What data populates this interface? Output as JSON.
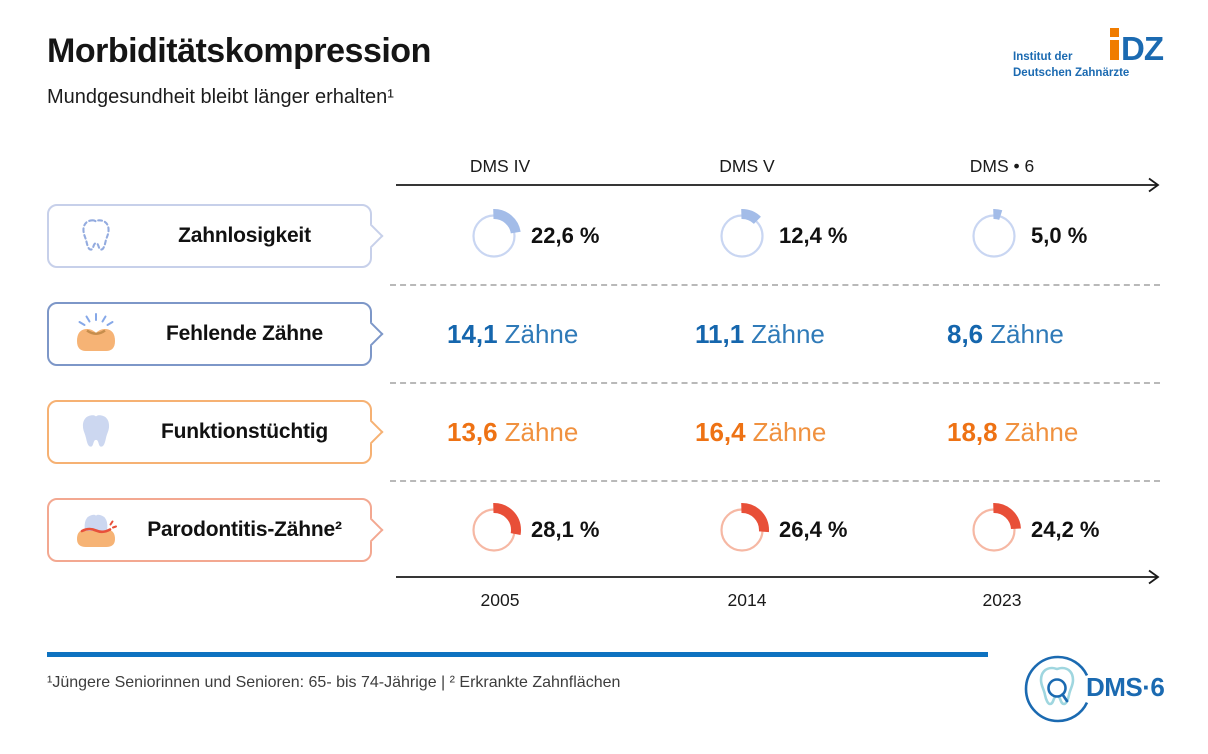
{
  "header": {
    "title": "Morbiditätskompression",
    "subtitle": "Mundgesundheit bleibt länger erhalten¹",
    "logo": {
      "mark": "DZ",
      "line1": "Institut der",
      "line2": "Deutschen Zahnärzte"
    }
  },
  "timeline": {
    "top_labels": [
      "DMS IV",
      "DMS V",
      "DMS • 6"
    ],
    "bottom_labels": [
      "2005",
      "2014",
      "2023"
    ]
  },
  "chart_data": {
    "type": "table",
    "title": "Morbiditätskompression",
    "subtitle": "Mundgesundheit bleibt länger erhalten¹",
    "columns": [
      "DMS IV",
      "DMS V",
      "DMS • 6"
    ],
    "years": [
      "2005",
      "2014",
      "2023"
    ],
    "series": [
      {
        "name": "Zahnlosigkeit",
        "display": "donut",
        "unit": "%",
        "values": [
          22.6,
          12.4,
          5.0
        ],
        "labels": [
          "22,6 %",
          "12,4 %",
          "5,0 %"
        ]
      },
      {
        "name": "Fehlende Zähne",
        "display": "number",
        "unit": "Zähne",
        "values": [
          14.1,
          11.1,
          8.6
        ],
        "labels": [
          "14,1",
          "11,1",
          "8,6"
        ]
      },
      {
        "name": "Funktionstüchtig",
        "display": "number",
        "unit": "Zähne",
        "values": [
          13.6,
          16.4,
          18.8
        ],
        "labels": [
          "13,6",
          "16,4",
          "18,8"
        ]
      },
      {
        "name": "Parodontitis-Zähne²",
        "display": "donut",
        "unit": "%",
        "values": [
          28.1,
          26.4,
          24.2
        ],
        "labels": [
          "28,1 %",
          "26,4 %",
          "24,2 %"
        ]
      }
    ]
  },
  "footer": {
    "note": "¹Jüngere Seniorinnen und Senioren: 65- bis 74-Jährige | ² Erkrankte Zahnflächen",
    "logo_text": "DMS·6"
  },
  "colors": {
    "brand_blue": "#1b6ab1",
    "brand_orange": "#f07c00",
    "text": "#1a1a1a",
    "row1_border": "#c7d0ea",
    "row2_border": "#7d97c8",
    "row3_border": "#f6b173",
    "row4_border": "#f3a891",
    "donut_blue_ring": "#c9d6f2",
    "donut_blue_arc": "#a3bce8",
    "donut_red_ring": "#f6b8a4",
    "donut_red_arc": "#e84f38",
    "value_blue": "#1566ad",
    "value_blue_light": "#2f7ab8",
    "value_orange": "#ee7214",
    "value_orange_light": "#f0913f",
    "footer_bar": "#0e72c0",
    "divider": "#b9b9b9"
  }
}
